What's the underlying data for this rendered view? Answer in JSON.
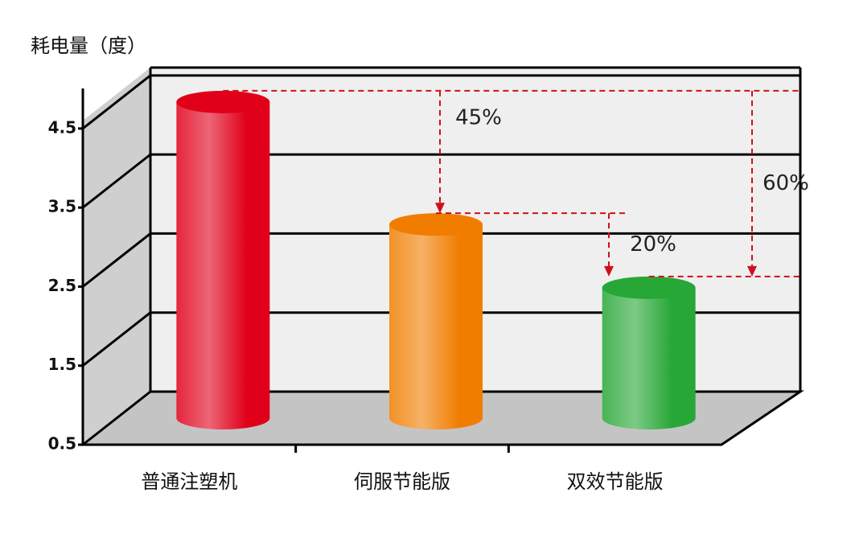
{
  "chart_data": {
    "type": "bar3d",
    "y_label": "耗电量（度）",
    "categories": [
      "普通注塑机",
      "伺服节能版",
      "双效节能版"
    ],
    "values": [
      4.5,
      2.95,
      2.15
    ],
    "colors": [
      "#e0001a",
      "#f07d00",
      "#27a736"
    ],
    "ylim": [
      0.5,
      4.6
    ],
    "yticks": [
      0.5,
      1.5,
      2.5,
      3.5,
      4.5
    ],
    "grid": true,
    "annotations": [
      "45%",
      "20%",
      "60%"
    ]
  }
}
